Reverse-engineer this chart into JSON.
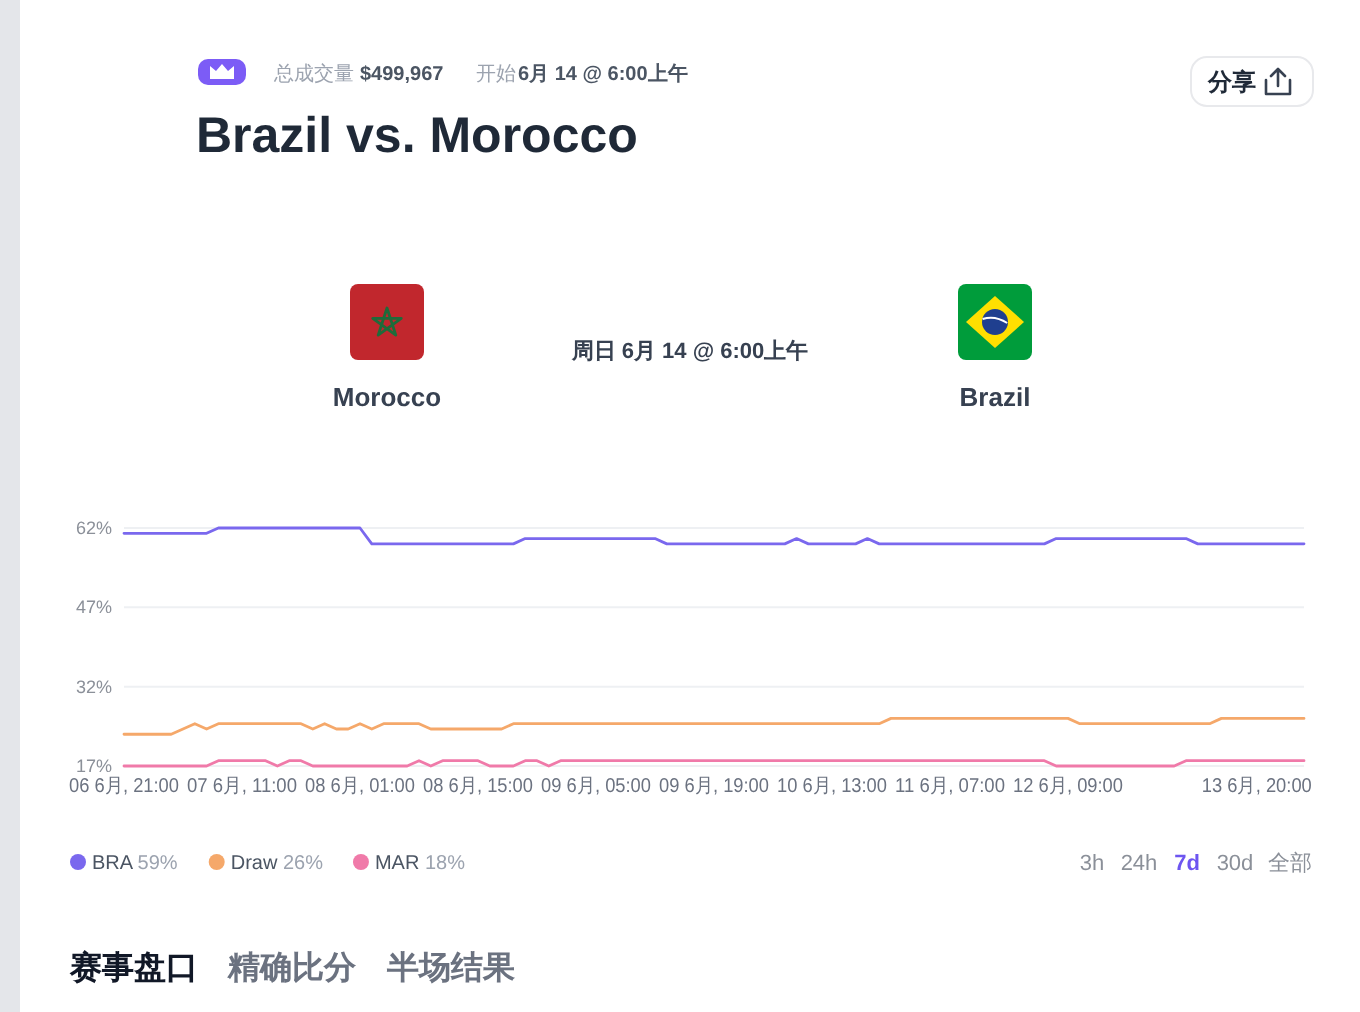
{
  "chart_data": {
    "type": "line",
    "title": "Brazil vs. Morocco",
    "annotations": [
      "总成交量",
      "$499,967",
      "开始",
      "6月 14 @ 6:00上午",
      "分享",
      "Morocco",
      "周日 6月 14 @ 6:00上午",
      "Brazil",
      "3h",
      "24h",
      "7d",
      "30d",
      "全部",
      "赛事盘口",
      "精确比分",
      "半场结果"
    ],
    "categories": [
      "06 6月, 21:00",
      null,
      null,
      null,
      null,
      null,
      null,
      null,
      null,
      null,
      "07 6月, 11:00",
      null,
      null,
      null,
      null,
      null,
      null,
      null,
      null,
      null,
      "08 6月, 01:00",
      null,
      null,
      null,
      null,
      null,
      null,
      null,
      null,
      null,
      "08 6月, 15:00",
      null,
      null,
      null,
      null,
      null,
      null,
      null,
      null,
      null,
      "09 6月, 05:00",
      null,
      null,
      null,
      null,
      null,
      null,
      null,
      null,
      null,
      "09 6月, 19:00",
      null,
      null,
      null,
      null,
      null,
      null,
      null,
      null,
      null,
      "10 6月, 13:00",
      null,
      null,
      null,
      null,
      null,
      null,
      null,
      null,
      null,
      "11 6月, 07:00",
      null,
      null,
      null,
      null,
      null,
      null,
      null,
      null,
      null,
      "12 6月, 09:00",
      null,
      null,
      null,
      null,
      null,
      null,
      null,
      null,
      null,
      null,
      null,
      null,
      null,
      null,
      null,
      "13 6月, 20:00",
      null,
      null,
      null,
      null
    ],
    "series": [
      {
        "name": "BRA 59%",
        "color": "#7a68ee",
        "values": [
          61,
          61,
          61,
          61,
          61,
          61,
          61,
          61,
          62,
          62,
          62,
          62,
          62,
          62,
          62,
          62,
          62,
          62,
          62,
          62,
          62,
          59,
          59,
          59,
          59,
          59,
          59,
          59,
          59,
          59,
          59,
          59,
          59,
          59,
          60,
          60,
          60,
          60,
          60,
          60,
          60,
          60,
          60,
          60,
          60,
          60,
          59,
          59,
          59,
          59,
          59,
          59,
          59,
          59,
          59,
          59,
          59,
          60,
          59,
          59,
          59,
          59,
          59,
          60,
          59,
          59,
          59,
          59,
          59,
          59,
          59,
          59,
          59,
          59,
          59,
          59,
          59,
          59,
          59,
          60,
          60,
          60,
          60,
          60,
          60,
          60,
          60,
          60,
          60,
          60,
          60,
          59,
          59,
          59,
          59,
          59,
          59,
          59,
          59,
          59,
          59
        ]
      },
      {
        "name": "Draw 26%",
        "color": "#f5a86a",
        "values": [
          23,
          23,
          23,
          23,
          23,
          24,
          25,
          24,
          25,
          25,
          25,
          25,
          25,
          25,
          25,
          25,
          24,
          25,
          24,
          24,
          25,
          24,
          25,
          25,
          25,
          25,
          24,
          24,
          24,
          24,
          24,
          24,
          24,
          25,
          25,
          25,
          25,
          25,
          25,
          25,
          25,
          25,
          25,
          25,
          25,
          25,
          25,
          25,
          25,
          25,
          25,
          25,
          25,
          25,
          25,
          25,
          25,
          25,
          25,
          25,
          25,
          25,
          25,
          25,
          25,
          26,
          26,
          26,
          26,
          26,
          26,
          26,
          26,
          26,
          26,
          26,
          26,
          26,
          26,
          26,
          26,
          25,
          25,
          25,
          25,
          25,
          25,
          25,
          25,
          25,
          25,
          25,
          25,
          26,
          26,
          26,
          26,
          26,
          26,
          26,
          26
        ]
      },
      {
        "name": "MAR 18%",
        "color": "#f07aa9",
        "values": [
          17,
          17,
          17,
          17,
          17,
          17,
          17,
          17,
          18,
          18,
          18,
          18,
          18,
          17,
          18,
          18,
          17,
          17,
          17,
          17,
          17,
          17,
          17,
          17,
          17,
          18,
          17,
          18,
          18,
          18,
          18,
          17,
          17,
          17,
          18,
          18,
          17,
          18,
          18,
          18,
          18,
          18,
          18,
          18,
          18,
          18,
          18,
          18,
          18,
          18,
          18,
          18,
          18,
          18,
          18,
          18,
          18,
          18,
          18,
          18,
          18,
          18,
          18,
          18,
          18,
          18,
          18,
          18,
          18,
          18,
          18,
          18,
          18,
          18,
          18,
          18,
          18,
          18,
          18,
          17,
          17,
          17,
          17,
          17,
          17,
          17,
          17,
          17,
          17,
          17,
          18,
          18,
          18,
          18,
          18,
          18,
          18,
          18,
          18,
          18,
          18
        ]
      }
    ],
    "ylim": [
      17,
      62
    ],
    "yticks": [
      {
        "value": 17,
        "label": "17%"
      },
      {
        "value": 32,
        "label": "32%"
      },
      {
        "value": 47,
        "label": "47%"
      },
      {
        "value": 62,
        "label": "62%"
      }
    ],
    "grid": "y",
    "legend": "bottom left"
  }
}
